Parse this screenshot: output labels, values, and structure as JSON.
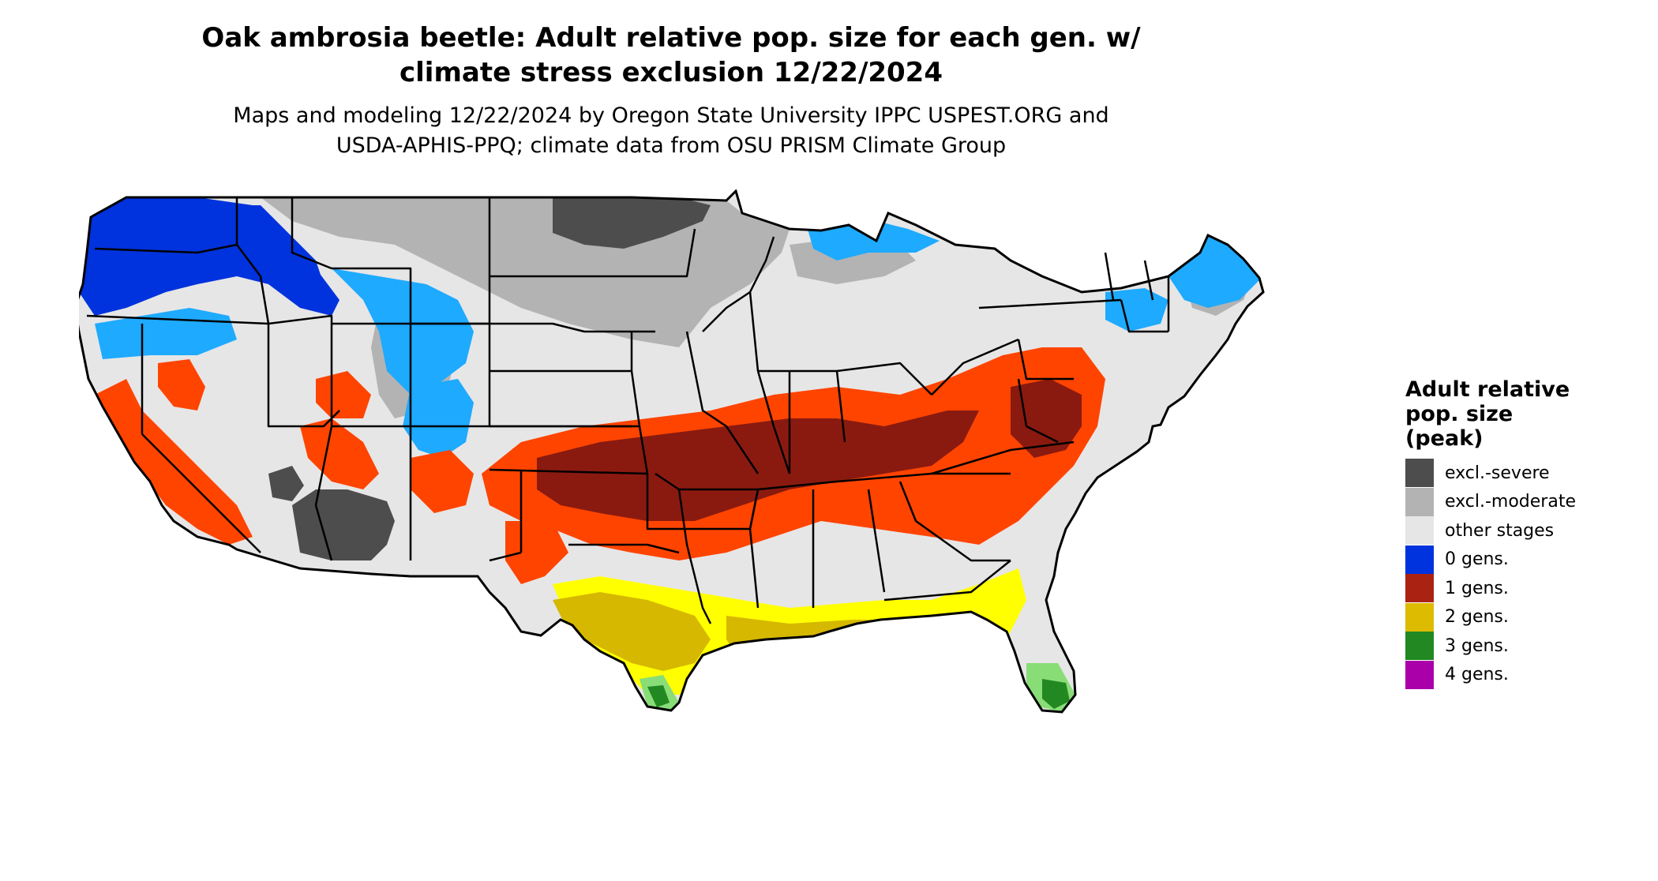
{
  "title_lines": [
    "Oak ambrosia beetle: Adult relative pop. size for each gen. w/",
    "climate stress exclusion 12/22/2024"
  ],
  "subtitle_lines": [
    "Maps and modeling 12/22/2024 by Oregon State University IPPC USPEST.ORG and",
    "USDA-APHIS-PPQ; climate data from OSU PRISM Climate Group"
  ],
  "legend": {
    "title_lines": [
      "Adult relative",
      "pop. size",
      "(peak)"
    ],
    "items": [
      {
        "label": "excl.-severe",
        "color": "#4d4d4d"
      },
      {
        "label": "excl.-moderate",
        "color": "#b3b3b3"
      },
      {
        "label": "other stages",
        "color": "#e6e6e6"
      },
      {
        "label": "0 gens.",
        "color": "#0033dd"
      },
      {
        "label": "1 gens.",
        "color": "#aa2211"
      },
      {
        "label": "2 gens.",
        "color": "#ddbb00"
      },
      {
        "label": "3 gens.",
        "color": "#228822"
      },
      {
        "label": "4 gens.",
        "color": "#aa00aa"
      }
    ]
  },
  "map_colors": {
    "land": "#e6e6e6",
    "excl_severe": "#4d4d4d",
    "excl_moderate": "#b3b3b3",
    "zero_gen_dark": "#0033dd",
    "zero_gen_light": "#1eaaff",
    "one_gen_dark": "#8a1a10",
    "one_gen_mid": "#c02a10",
    "one_gen_light": "#ff4400",
    "two_gen_dark": "#d6b800",
    "two_gen_light": "#ffff00",
    "three_gen": "#228822",
    "three_gen_light": "#88dd77",
    "border": "#000000"
  }
}
